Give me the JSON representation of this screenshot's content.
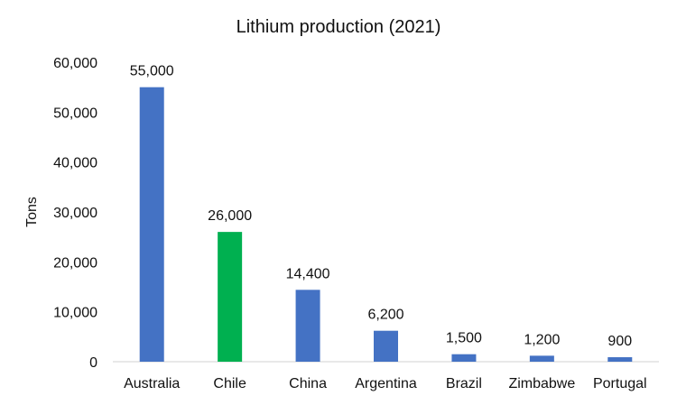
{
  "chart_data": {
    "type": "bar",
    "title": "Lithium production (2021)",
    "xlabel": "",
    "ylabel": "Tons",
    "categories": [
      "Australia",
      "Chile",
      "China",
      "Argentina",
      "Brazil",
      "Zimbabwe",
      "Portugal"
    ],
    "values": [
      55000,
      26000,
      14400,
      6200,
      1500,
      1200,
      900
    ],
    "data_labels": [
      "55,000",
      "26,000",
      "14,400",
      "6,200",
      "1,500",
      "1,200",
      "900"
    ],
    "bar_colors": [
      "#4472C4",
      "#00B050",
      "#4472C4",
      "#4472C4",
      "#4472C4",
      "#4472C4",
      "#4472C4"
    ],
    "ylim": [
      0,
      60000
    ],
    "yticks": [
      0,
      10000,
      20000,
      30000,
      40000,
      50000,
      60000
    ],
    "ytick_labels": [
      "0",
      "10,000",
      "20,000",
      "30,000",
      "40,000",
      "50,000",
      "60,000"
    ],
    "grid": false,
    "legend": "none"
  }
}
